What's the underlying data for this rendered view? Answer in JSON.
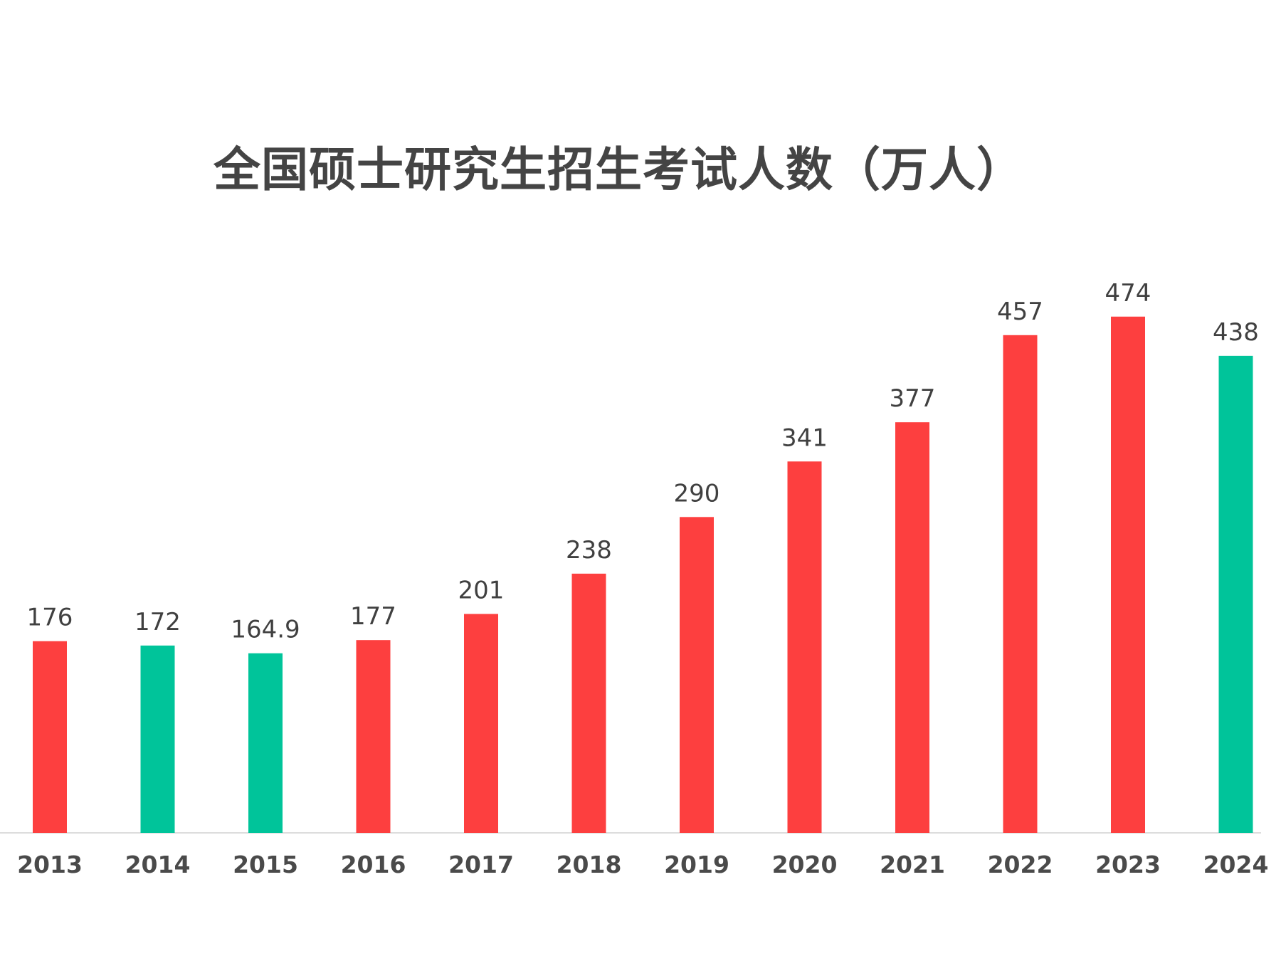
{
  "chart_data": {
    "type": "bar",
    "title": "全国硕士研究生招生考试人数（万人）",
    "xlabel": "",
    "ylabel": "",
    "ylim": [
      0,
      520
    ],
    "grid": false,
    "legend": "none",
    "categories": [
      "2013",
      "2014",
      "2015",
      "2016",
      "2017",
      "2018",
      "2019",
      "2020",
      "2021",
      "2022",
      "2023",
      "2024"
    ],
    "values": [
      176,
      172,
      164.9,
      177,
      201,
      238,
      290,
      341,
      377,
      457,
      474,
      438
    ],
    "value_labels": [
      "176",
      "172",
      "164.9",
      "177",
      "201",
      "238",
      "290",
      "341",
      "377",
      "457",
      "474",
      "438"
    ],
    "colors": {
      "increase": "#fd3f3f",
      "decrease": "#00c49a",
      "axis": "#dcdcdc"
    },
    "bar_color_by_category": [
      "increase",
      "decrease",
      "decrease",
      "increase",
      "increase",
      "increase",
      "increase",
      "increase",
      "increase",
      "increase",
      "increase",
      "decrease"
    ]
  }
}
